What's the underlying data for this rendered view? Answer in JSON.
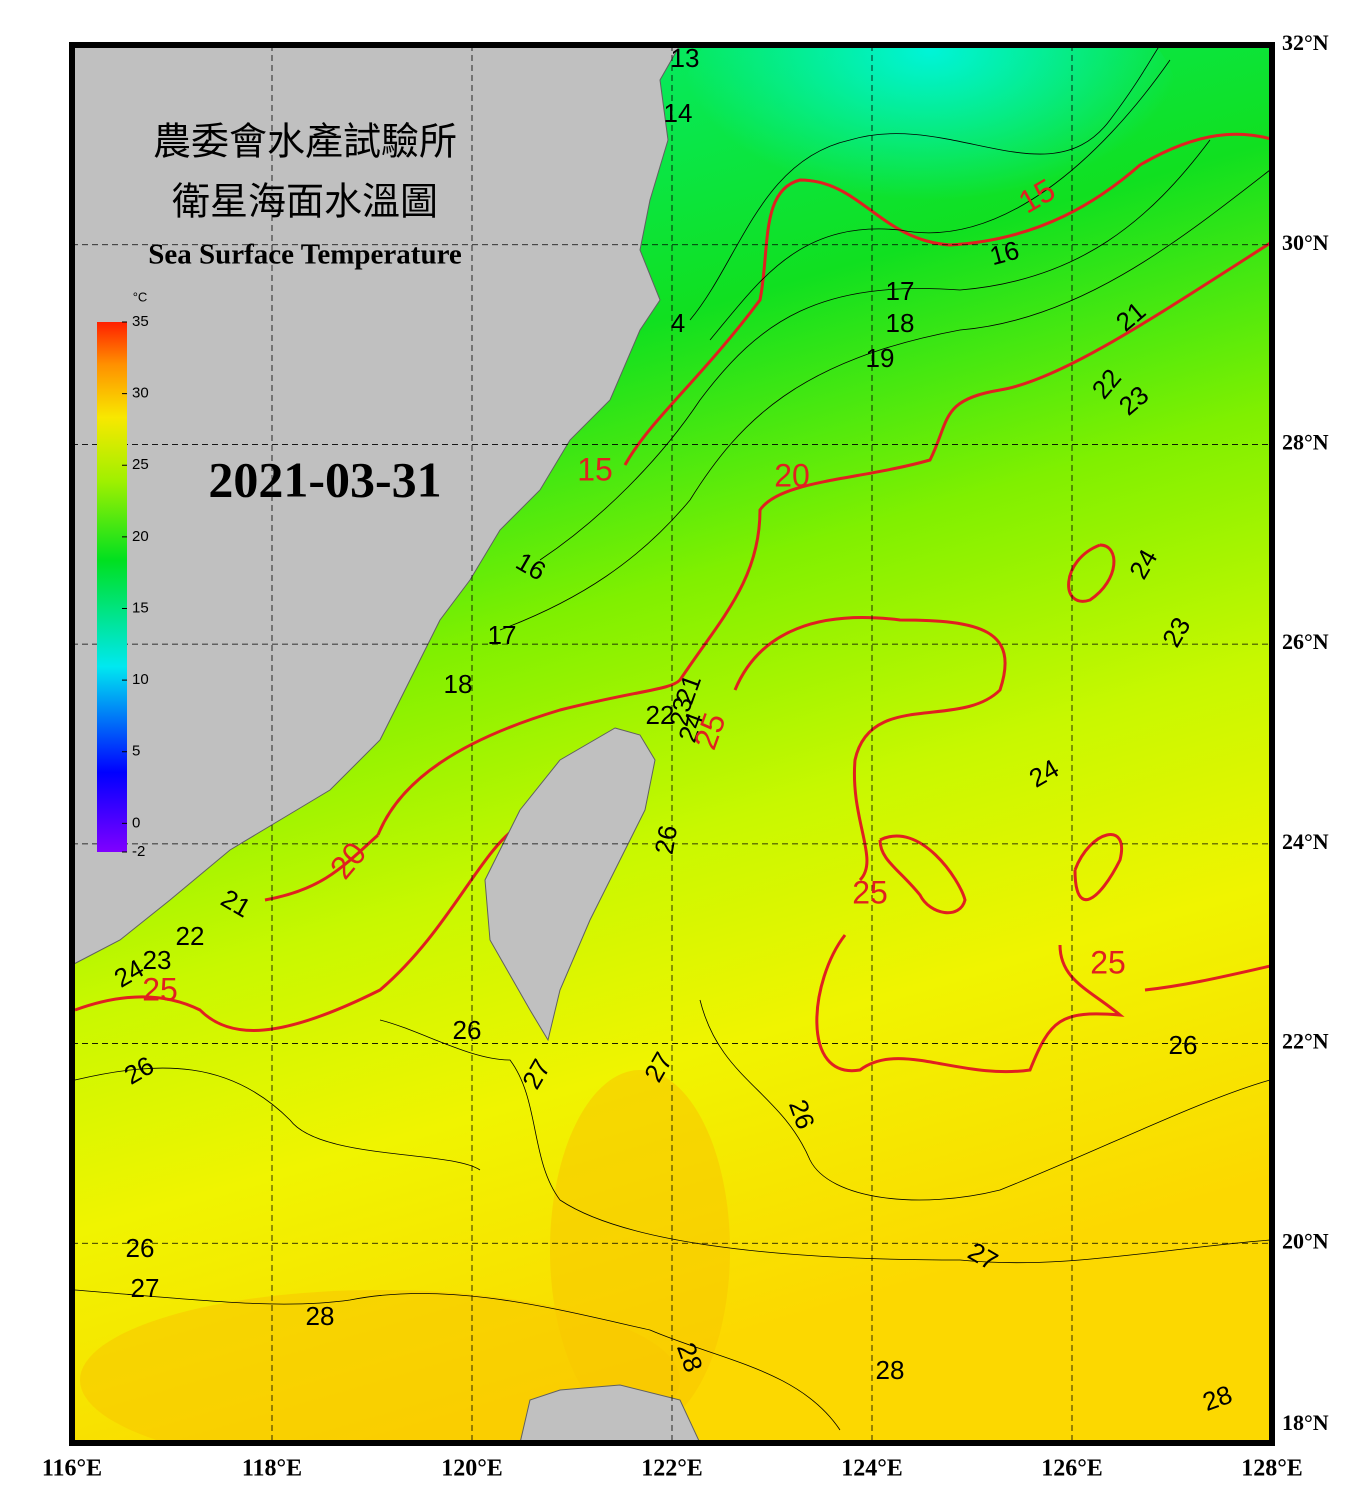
{
  "header": {
    "title_zh_line1": "農委會水產試驗所",
    "title_zh_line2": "衛星海面水溫圖",
    "title_en": "Sea Surface Temperature",
    "date": "2021-03-31"
  },
  "colorbar": {
    "unit": "°C",
    "lim": [
      -2,
      35
    ],
    "ticks": [
      -2,
      0,
      5,
      10,
      15,
      20,
      25,
      30,
      35
    ]
  },
  "map": {
    "grid": true,
    "lon_ticks": [
      {
        "value": 116,
        "label": "116°E"
      },
      {
        "value": 118,
        "label": "118°E"
      },
      {
        "value": 120,
        "label": "120°E"
      },
      {
        "value": 122,
        "label": "122°E"
      },
      {
        "value": 124,
        "label": "124°E"
      },
      {
        "value": 126,
        "label": "126°E"
      },
      {
        "value": 128,
        "label": "128°E"
      }
    ],
    "lat_ticks": [
      {
        "value": 18,
        "label": "18°N"
      },
      {
        "value": 20,
        "label": "20°N"
      },
      {
        "value": 22,
        "label": "22°N"
      },
      {
        "value": 24,
        "label": "24°N"
      },
      {
        "value": 26,
        "label": "26°N"
      },
      {
        "value": 28,
        "label": "28°N"
      },
      {
        "value": 30,
        "label": "30°N"
      },
      {
        "value": 32,
        "label": "32°N"
      }
    ],
    "contour_labels": [
      13,
      14,
      15,
      16,
      17,
      18,
      19,
      21,
      22,
      23,
      4,
      15,
      20,
      24,
      16,
      23,
      17,
      18,
      21,
      22,
      23,
      24,
      25,
      24,
      26,
      20,
      25,
      21,
      22,
      23,
      24,
      25,
      25,
      26,
      26,
      26,
      27,
      27,
      26,
      27,
      26,
      27,
      28,
      28,
      28,
      28
    ]
  }
}
